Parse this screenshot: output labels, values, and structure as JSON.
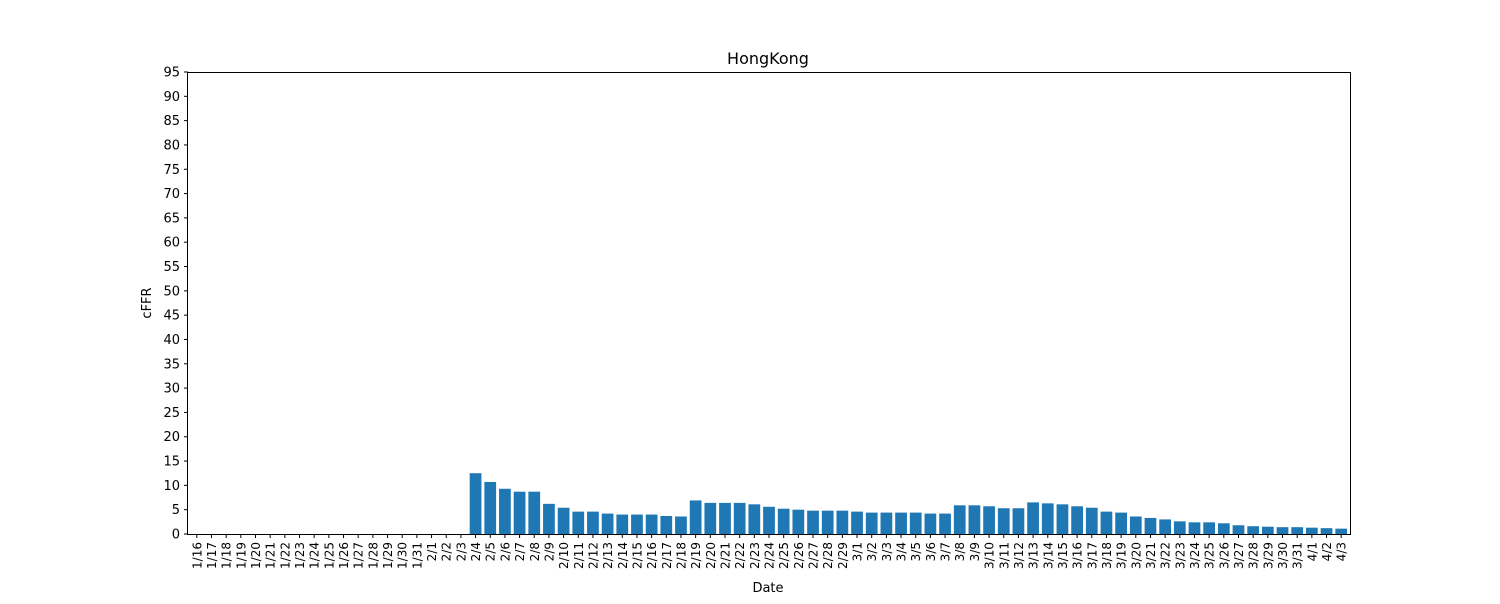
{
  "chart_data": {
    "type": "bar",
    "title": "HongKong",
    "xlabel": "Date",
    "ylabel": "cFFR",
    "ylim": [
      0,
      95
    ],
    "yticks": [
      0,
      5,
      10,
      15,
      20,
      25,
      30,
      35,
      40,
      45,
      50,
      55,
      60,
      65,
      70,
      75,
      80,
      85,
      90,
      95
    ],
    "grid": false,
    "bar_color": "#1f77b4",
    "categories": [
      "1/16",
      "1/17",
      "1/18",
      "1/19",
      "1/20",
      "1/21",
      "1/22",
      "1/23",
      "1/24",
      "1/25",
      "1/26",
      "1/27",
      "1/28",
      "1/29",
      "1/30",
      "1/31",
      "2/1",
      "2/2",
      "2/3",
      "2/4",
      "2/5",
      "2/6",
      "2/7",
      "2/8",
      "2/9",
      "2/10",
      "2/11",
      "2/12",
      "2/13",
      "2/14",
      "2/15",
      "2/16",
      "2/17",
      "2/18",
      "2/19",
      "2/20",
      "2/21",
      "2/22",
      "2/23",
      "2/24",
      "2/25",
      "2/26",
      "2/27",
      "2/28",
      "2/29",
      "3/1",
      "3/2",
      "3/3",
      "3/4",
      "3/5",
      "3/6",
      "3/7",
      "3/8",
      "3/9",
      "3/10",
      "3/11",
      "3/12",
      "3/13",
      "3/14",
      "3/15",
      "3/16",
      "3/17",
      "3/18",
      "3/19",
      "3/20",
      "3/21",
      "3/22",
      "3/23",
      "3/24",
      "3/25",
      "3/26",
      "3/27",
      "3/28",
      "3/29",
      "3/30",
      "3/31",
      "4/1",
      "4/2",
      "4/3"
    ],
    "values": [
      0,
      0,
      0,
      0,
      0,
      0,
      0,
      0,
      0,
      0,
      0,
      0,
      0,
      0,
      0,
      0,
      0,
      0,
      0,
      12.5,
      10.7,
      9.3,
      8.7,
      8.7,
      6.2,
      5.4,
      4.6,
      4.6,
      4.2,
      4.0,
      4.0,
      4.0,
      3.7,
      3.6,
      6.9,
      6.4,
      6.4,
      6.4,
      6.1,
      5.6,
      5.2,
      5.0,
      4.8,
      4.8,
      4.8,
      4.6,
      4.4,
      4.4,
      4.4,
      4.4,
      4.2,
      4.2,
      5.9,
      5.9,
      5.7,
      5.3,
      5.3,
      6.5,
      6.3,
      6.1,
      5.7,
      5.4,
      4.6,
      4.4,
      3.6,
      3.3,
      3.0,
      2.6,
      2.4,
      2.4,
      2.2,
      1.8,
      1.6,
      1.5,
      1.4,
      1.4,
      1.3,
      1.2,
      1.1
    ]
  }
}
